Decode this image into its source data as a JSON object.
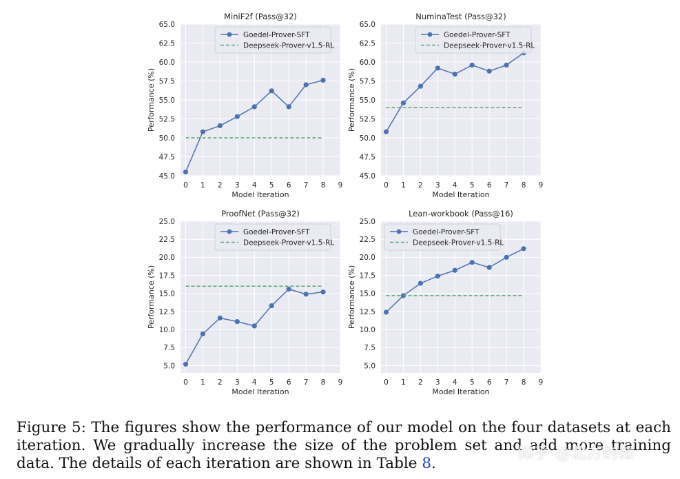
{
  "colors": {
    "sft": "#4c72b0",
    "rl": "#55a868",
    "panel_bg": "#eaeaf2",
    "grid": "#ffffff"
  },
  "chart_data": [
    {
      "type": "line",
      "title": "MiniF2f (Pass@32)",
      "xlabel": "Model Iteration",
      "ylabel": "Performance (%)",
      "xlim": [
        -0.3,
        9
      ],
      "ylim": [
        45.0,
        65.0
      ],
      "xticks": [
        0,
        1,
        2,
        3,
        4,
        5,
        6,
        7,
        8,
        9
      ],
      "yticks": [
        "45.0",
        "47.5",
        "50.0",
        "52.5",
        "55.0",
        "57.5",
        "60.0",
        "62.5",
        "65.0"
      ],
      "legend_position": "top-right",
      "series": [
        {
          "name": "Goedel-Prover-SFT",
          "style": "line-marker",
          "x": [
            0,
            1,
            2,
            3,
            4,
            5,
            6,
            7,
            8
          ],
          "values": [
            45.5,
            50.8,
            51.6,
            52.8,
            54.1,
            56.2,
            54.1,
            57.0,
            57.6
          ]
        },
        {
          "name": "Deepseek-Prover-v1.5-RL",
          "style": "dashed",
          "x": [
            0,
            8
          ],
          "values": [
            50.0,
            50.0
          ]
        }
      ]
    },
    {
      "type": "line",
      "title": "NuminaTest (Pass@32)",
      "xlabel": "Model Iteration",
      "ylabel": "Performance (%)",
      "xlim": [
        -0.3,
        9
      ],
      "ylim": [
        45.0,
        65.0
      ],
      "xticks": [
        0,
        1,
        2,
        3,
        4,
        5,
        6,
        7,
        8,
        9
      ],
      "yticks": [
        "45.0",
        "47.5",
        "50.0",
        "52.5",
        "55.0",
        "57.5",
        "60.0",
        "62.5",
        "65.0"
      ],
      "legend_position": "top-right",
      "series": [
        {
          "name": "Goedel-Prover-SFT",
          "style": "line-marker",
          "x": [
            0,
            1,
            2,
            3,
            4,
            5,
            6,
            7,
            8
          ],
          "values": [
            50.8,
            54.6,
            56.8,
            59.2,
            58.4,
            59.6,
            58.8,
            59.6,
            61.2
          ]
        },
        {
          "name": "Deepseek-Prover-v1.5-RL",
          "style": "dashed",
          "x": [
            0,
            8
          ],
          "values": [
            54.0,
            54.0
          ]
        }
      ]
    },
    {
      "type": "line",
      "title": "ProofNet (Pass@32)",
      "xlabel": "Model Iteration",
      "ylabel": "Performance (%)",
      "xlim": [
        -0.3,
        9
      ],
      "ylim": [
        4.0,
        25.0
      ],
      "xticks": [
        0,
        1,
        2,
        3,
        4,
        5,
        6,
        7,
        8,
        9
      ],
      "yticks": [
        "5.0",
        "7.5",
        "10.0",
        "12.5",
        "15.0",
        "17.5",
        "20.0",
        "22.5",
        "25.0"
      ],
      "legend_position": "top-right",
      "series": [
        {
          "name": "Goedel-Prover-SFT",
          "style": "line-marker",
          "x": [
            0,
            1,
            2,
            3,
            4,
            5,
            6,
            7,
            8
          ],
          "values": [
            5.2,
            9.4,
            11.6,
            11.1,
            10.5,
            13.3,
            15.6,
            14.9,
            15.2
          ]
        },
        {
          "name": "Deepseek-Prover-v1.5-RL",
          "style": "dashed",
          "x": [
            0,
            8
          ],
          "values": [
            16.0,
            16.0
          ]
        }
      ]
    },
    {
      "type": "line",
      "title": "Lean-workbook (Pass@16)",
      "xlabel": "Model Iteration",
      "ylabel": "Performance (%)",
      "xlim": [
        -0.3,
        9
      ],
      "ylim": [
        4.0,
        25.0
      ],
      "xticks": [
        0,
        1,
        2,
        3,
        4,
        5,
        6,
        7,
        8,
        9
      ],
      "yticks": [
        "5.0",
        "7.5",
        "10.0",
        "12.5",
        "15.0",
        "17.5",
        "20.0",
        "22.5",
        "25.0"
      ],
      "legend_position": "top-left",
      "series": [
        {
          "name": "Goedel-Prover-SFT",
          "style": "line-marker",
          "x": [
            0,
            1,
            2,
            3,
            4,
            5,
            6,
            7,
            8
          ],
          "values": [
            12.4,
            14.7,
            16.4,
            17.4,
            18.2,
            19.3,
            18.6,
            20.0,
            21.2
          ]
        },
        {
          "name": "Deepseek-Prover-v1.5-RL",
          "style": "dashed",
          "x": [
            0,
            8
          ],
          "values": [
            14.7,
            14.7
          ]
        }
      ]
    }
  ],
  "caption": {
    "label": "Figure 5:",
    "text_before_ref": " The figures show the performance of our model on the four datasets at each iteration. We gradually increase the size of the problem set and add more training data. The details of each iteration are shown in Table ",
    "ref": "8",
    "text_after_ref": "."
  },
  "watermark": "知乎 @北方的郎"
}
